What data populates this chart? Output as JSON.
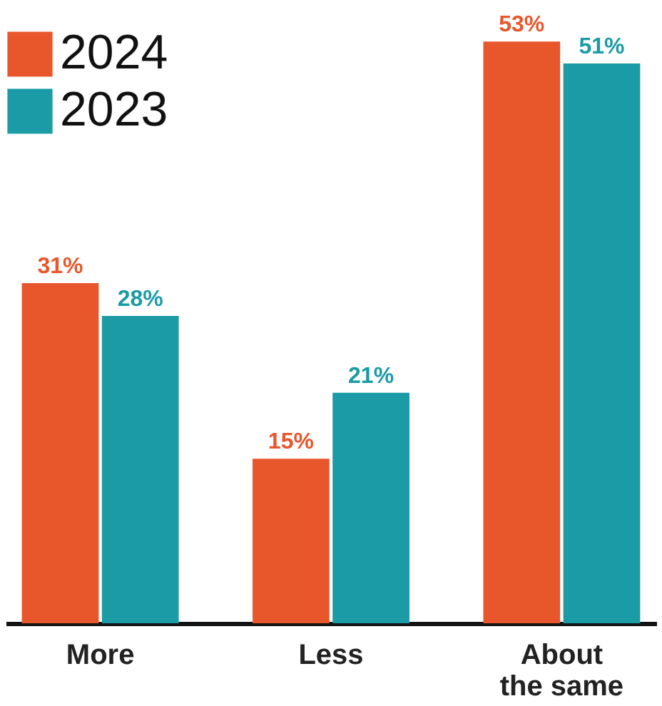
{
  "chart_data": {
    "type": "bar",
    "categories": [
      "More",
      "Less",
      "About the same"
    ],
    "series": [
      {
        "name": "2024",
        "color": "#e8572b",
        "values": [
          31,
          15,
          53
        ],
        "value_labels": [
          "31%",
          "15%",
          "53%"
        ]
      },
      {
        "name": "2023",
        "color": "#1a9ba5",
        "values": [
          28,
          21,
          51
        ],
        "value_labels": [
          "28%",
          "21%",
          "51%"
        ]
      }
    ],
    "legend": "top left"
  }
}
